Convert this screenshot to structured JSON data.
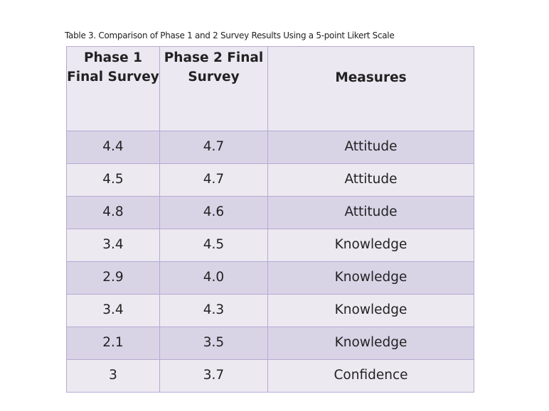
{
  "caption": "Table 3.  Comparison of Phase 1 and 2 Survey Results Using a 5-point Likert Scale",
  "table": {
    "headers": [
      "Phase 1 Final Survey",
      "Phase 2 Final Survey",
      "Measures"
    ],
    "rows": [
      [
        "4.4",
        "4.7",
        "Attitude"
      ],
      [
        "4.5",
        "4.7",
        "Attitude"
      ],
      [
        "4.8",
        "4.6",
        "Attitude"
      ],
      [
        "3.4",
        "4.5",
        "Knowledge"
      ],
      [
        "2.9",
        "4.0",
        "Knowledge"
      ],
      [
        "3.4",
        "4.3",
        "Knowledge"
      ],
      [
        "2.1",
        "3.5",
        "Knowledge"
      ],
      [
        "3",
        "3.7",
        "Confidence"
      ]
    ]
  },
  "colors": {
    "header_bg": "#ebe8f1",
    "row_odd_bg": "#d8d4e6",
    "row_even_bg": "#ece9f1",
    "border": "#b7a9d2"
  }
}
